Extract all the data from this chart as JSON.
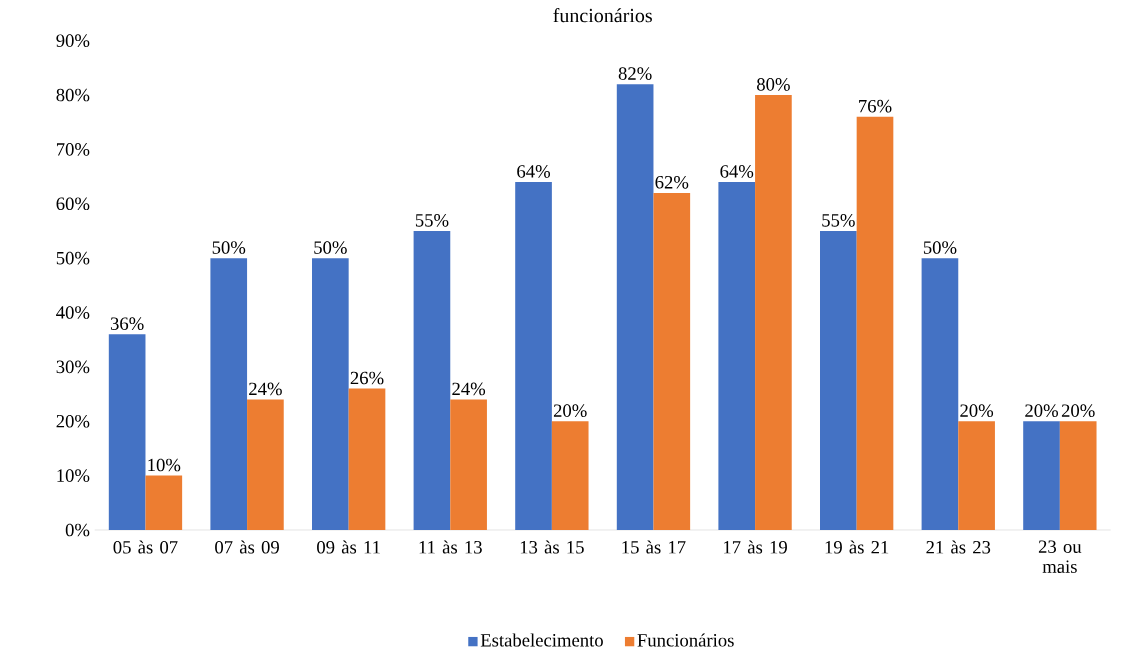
{
  "chart_data": {
    "type": "bar",
    "title": "funcionários",
    "categories": [
      "05 às 07",
      "07 às 09",
      "09 às 11",
      "11 às 13",
      "13 às 15",
      "15 às 17",
      "17 às 19",
      "19 às 21",
      "21 às 23",
      "23 ou mais"
    ],
    "series": [
      {
        "name": "Estabelecimento",
        "color": "#4472c4",
        "values": [
          36,
          50,
          50,
          55,
          64,
          82,
          64,
          55,
          50,
          20
        ],
        "value_labels": [
          "36%",
          "50%",
          "50%",
          "55%",
          "64%",
          "82%",
          "64%",
          "55%",
          "50%",
          "20%"
        ]
      },
      {
        "name": "Funcionários",
        "color": "#ed7d31",
        "values": [
          10,
          24,
          26,
          24,
          20,
          62,
          80,
          76,
          20,
          20
        ],
        "value_labels": [
          "10%",
          "24%",
          "26%",
          "24%",
          "20%",
          "62%",
          "80%",
          "76%",
          "20%",
          "20%"
        ]
      }
    ],
    "ylim": [
      0,
      90
    ],
    "yticks": [
      {
        "value": 0,
        "label": "0%"
      },
      {
        "value": 10,
        "label": "10%"
      },
      {
        "value": 20,
        "label": "20%"
      },
      {
        "value": 30,
        "label": "30%"
      },
      {
        "value": 40,
        "label": "40%"
      },
      {
        "value": 50,
        "label": "50%"
      },
      {
        "value": 60,
        "label": "60%"
      },
      {
        "value": 70,
        "label": "70%"
      },
      {
        "value": 80,
        "label": "80%"
      },
      {
        "value": 90,
        "label": "90%"
      }
    ],
    "grid": false,
    "legend": "bottom"
  }
}
